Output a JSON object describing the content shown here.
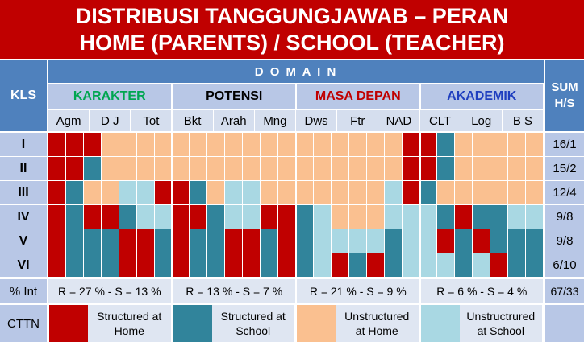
{
  "title": {
    "line1": "DISTRIBUSI TANGGUNGJAWAB – PERAN",
    "line2": "HOME (PARENTS) / SCHOOL (TEACHER)"
  },
  "header": {
    "kls": "KLS",
    "domain": "D O M A I N",
    "sum": "SUM\nH/S",
    "sum_line1": "SUM",
    "sum_line2": "H/S"
  },
  "domains": [
    {
      "name": "KARAKTER",
      "color": "#00a650",
      "subs": [
        "Agm",
        "D J",
        "Tot"
      ]
    },
    {
      "name": "POTENSI",
      "color": "#000000",
      "subs": [
        "Bkt",
        "Arah",
        "Mng"
      ]
    },
    {
      "name": "MASA DEPAN",
      "color": "#c00000",
      "subs": [
        "Dws",
        "Ftr",
        "NAD"
      ]
    },
    {
      "name": "AKADEMIK",
      "color": "#1f3fbf",
      "subs": [
        "CLT",
        "Log",
        "B S"
      ]
    }
  ],
  "rows": [
    {
      "kls": "I",
      "sum": "16/1"
    },
    {
      "kls": "II",
      "sum": "15/2"
    },
    {
      "kls": "III",
      "sum": "12/4"
    },
    {
      "kls": "IV",
      "sum": "9/8"
    },
    {
      "kls": "V",
      "sum": "9/8"
    },
    {
      "kls": "VI",
      "sum": "6/10"
    }
  ],
  "grid_colors": {
    "R": "#c00000",
    "S": "#31849b",
    "U": "#fac090",
    "L": "#a9d8e3"
  },
  "grid": [
    "RRRUUUUUUUUUUUUUUUUURRSUUUUU",
    "RRSUUUUUUUUUUUUUUUUURRSUUUUU",
    "RSUULLRRSULLUUUUUUULRSUUUUUU",
    "RSRRSLLRRSLLRRSLUUULLLSRSSLL",
    "RSSSRRSRSSRRSRSLLLLSLLRSRSSS",
    "RSSSRRSRSSRRSRSLRSRSLLLSLRSS"
  ],
  "percent": {
    "label": "% Int",
    "values": [
      "R = 27 % - S = 13 %",
      "R = 13 % - S = 7 %",
      "R = 21 % - S = 9 %",
      "R = 6 % - S = 4 %"
    ],
    "sum": "67/33"
  },
  "legend": {
    "label": "CTTN",
    "items": [
      {
        "color": "#c00000",
        "line1": "Structured at",
        "line2": "Home"
      },
      {
        "color": "#31849b",
        "line1": "Structured at",
        "line2": "School"
      },
      {
        "color": "#fac090",
        "line1": "Unstructured",
        "line2": "at Home"
      },
      {
        "color": "#a9d8e3",
        "line1": "Unstructrured",
        "line2": "at School"
      }
    ]
  }
}
